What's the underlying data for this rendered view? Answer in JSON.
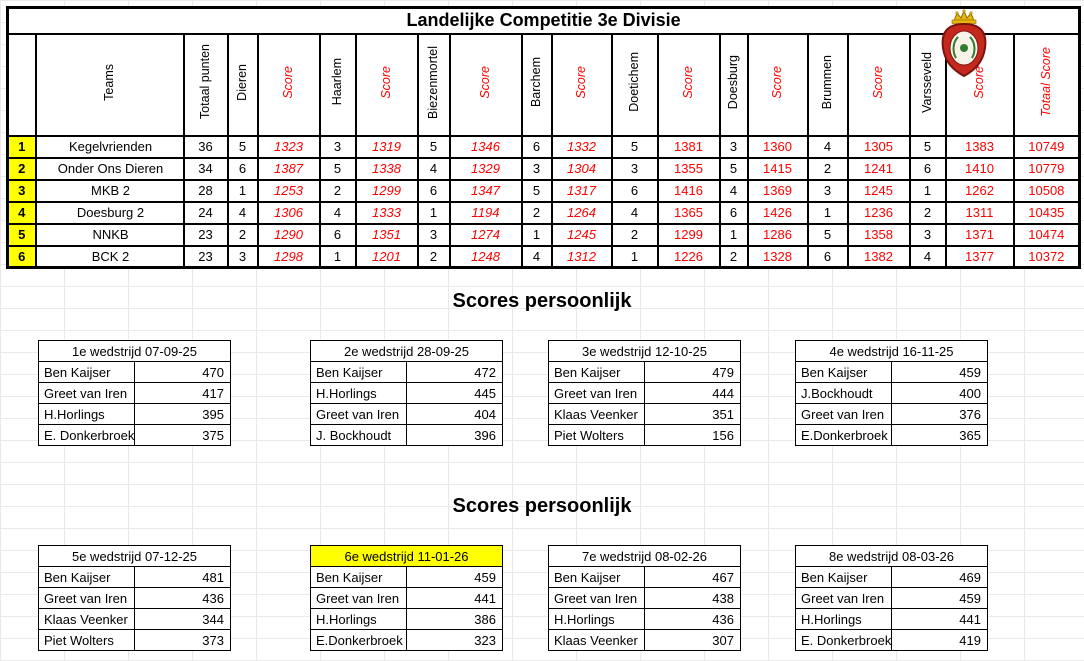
{
  "main_table": {
    "title": "Landelijke Competitie 3e Divisie",
    "columns": [
      {
        "label": "Teams",
        "red": false,
        "style": "team"
      },
      {
        "label": "Totaal punten",
        "red": false,
        "style": "plain"
      },
      {
        "label": "Dieren",
        "red": false,
        "style": "plain"
      },
      {
        "label": "Score",
        "red": true,
        "style": "score-italic"
      },
      {
        "label": "Haarlem",
        "red": false,
        "style": "plain"
      },
      {
        "label": "Score",
        "red": true,
        "style": "score-italic"
      },
      {
        "label": "Biezenmortel",
        "red": false,
        "style": "plain"
      },
      {
        "label": "Score",
        "red": true,
        "style": "score-italic"
      },
      {
        "label": "Barchem",
        "red": false,
        "style": "plain"
      },
      {
        "label": "Score",
        "red": true,
        "style": "score-italic"
      },
      {
        "label": "Doetichem",
        "red": false,
        "style": "plain"
      },
      {
        "label": "Score",
        "red": true,
        "style": "score"
      },
      {
        "label": "Doesburg",
        "red": false,
        "style": "plain"
      },
      {
        "label": "Score",
        "red": true,
        "style": "score"
      },
      {
        "label": "Brummen",
        "red": false,
        "style": "plain"
      },
      {
        "label": "Score",
        "red": true,
        "style": "score"
      },
      {
        "label": "Varsseveld",
        "red": false,
        "style": "plain"
      },
      {
        "label": "Score",
        "red": true,
        "style": "score"
      },
      {
        "label": "Totaal Score",
        "red": true,
        "style": "score"
      }
    ],
    "rows": [
      {
        "rank": "1",
        "cells": [
          "Kegelvrienden",
          "36",
          "5",
          "1323",
          "3",
          "1319",
          "5",
          "1346",
          "6",
          "1332",
          "5",
          "1381",
          "3",
          "1360",
          "4",
          "1305",
          "5",
          "1383",
          "10749"
        ]
      },
      {
        "rank": "2",
        "cells": [
          "Onder Ons Dieren",
          "34",
          "6",
          "1387",
          "5",
          "1338",
          "4",
          "1329",
          "3",
          "1304",
          "3",
          "1355",
          "5",
          "1415",
          "2",
          "1241",
          "6",
          "1410",
          "10779"
        ]
      },
      {
        "rank": "3",
        "cells": [
          "MKB 2",
          "28",
          "1",
          "1253",
          "2",
          "1299",
          "6",
          "1347",
          "5",
          "1317",
          "6",
          "1416",
          "4",
          "1369",
          "3",
          "1245",
          "1",
          "1262",
          "10508"
        ]
      },
      {
        "rank": "4",
        "cells": [
          "Doesburg 2",
          "24",
          "4",
          "1306",
          "4",
          "1333",
          "1",
          "1194",
          "2",
          "1264",
          "4",
          "1365",
          "6",
          "1426",
          "1",
          "1236",
          "2",
          "1311",
          "10435"
        ]
      },
      {
        "rank": "5",
        "cells": [
          "NNKB",
          "23",
          "2",
          "1290",
          "6",
          "1351",
          "3",
          "1274",
          "1",
          "1245",
          "2",
          "1299",
          "1",
          "1286",
          "5",
          "1358",
          "3",
          "1371",
          "10474"
        ]
      },
      {
        "rank": "6",
        "cells": [
          "BCK 2",
          "23",
          "3",
          "1298",
          "1",
          "1201",
          "2",
          "1248",
          "4",
          "1312",
          "1",
          "1226",
          "2",
          "1328",
          "6",
          "1382",
          "4",
          "1377",
          "10372"
        ]
      }
    ]
  },
  "logo": {
    "icon": "club-crest",
    "colors": {
      "red": "#c5281c",
      "gold": "#e8b40e",
      "green": "#2e7d32"
    }
  },
  "sections": [
    {
      "heading": "Scores persoonlijk",
      "tables": [
        {
          "title": "1e wedstrijd 07-09-25",
          "highlight": false,
          "rows": [
            {
              "name": "Ben Kaijser",
              "score": "470"
            },
            {
              "name": "Greet van Iren",
              "score": "417"
            },
            {
              "name": "H.Horlings",
              "score": "395"
            },
            {
              "name": "E. Donkerbroek",
              "score": "375"
            }
          ]
        },
        {
          "title": "2e wedstrijd 28-09-25",
          "highlight": false,
          "rows": [
            {
              "name": "Ben Kaijser",
              "score": "472"
            },
            {
              "name": "H.Horlings",
              "score": "445"
            },
            {
              "name": "Greet van Iren",
              "score": "404"
            },
            {
              "name": "J. Bockhoudt",
              "score": "396"
            }
          ]
        },
        {
          "title": "3e wedstrijd 12-10-25",
          "highlight": false,
          "rows": [
            {
              "name": "Ben Kaijser",
              "score": "479"
            },
            {
              "name": "Greet van Iren",
              "score": "444"
            },
            {
              "name": "Klaas Veenker",
              "score": "351"
            },
            {
              "name": "Piet Wolters",
              "score": "156"
            }
          ]
        },
        {
          "title": "4e wedstrijd 16-11-25",
          "highlight": false,
          "rows": [
            {
              "name": "Ben Kaijser",
              "score": "459"
            },
            {
              "name": "J.Bockhoudt",
              "score": "400"
            },
            {
              "name": "Greet van Iren",
              "score": "376"
            },
            {
              "name": "E.Donkerbroek",
              "score": "365"
            }
          ]
        }
      ]
    },
    {
      "heading": "Scores persoonlijk",
      "tables": [
        {
          "title": "5e wedstrijd 07-12-25",
          "highlight": false,
          "rows": [
            {
              "name": "Ben Kaijser",
              "score": "481"
            },
            {
              "name": "Greet van Iren",
              "score": "436"
            },
            {
              "name": "Klaas Veenker",
              "score": "344"
            },
            {
              "name": "Piet Wolters",
              "score": "373"
            }
          ]
        },
        {
          "title": "6e wedstrijd 11-01-26",
          "highlight": true,
          "rows": [
            {
              "name": "Ben Kaijser",
              "score": "459"
            },
            {
              "name": "Greet van Iren",
              "score": "441"
            },
            {
              "name": "H.Horlings",
              "score": "386"
            },
            {
              "name": "E.Donkerbroek",
              "score": "323"
            }
          ]
        },
        {
          "title": "7e wedstrijd 08-02-26",
          "highlight": false,
          "rows": [
            {
              "name": "Ben Kaijser",
              "score": "467"
            },
            {
              "name": "Greet van Iren",
              "score": "438"
            },
            {
              "name": "H.Horlings",
              "score": "436"
            },
            {
              "name": "Klaas Veenker",
              "score": "307"
            }
          ]
        },
        {
          "title": "8e wedstrijd 08-03-26",
          "highlight": false,
          "rows": [
            {
              "name": "Ben Kaijser",
              "score": "469"
            },
            {
              "name": "Greet van Iren",
              "score": "459"
            },
            {
              "name": "H.Horlings",
              "score": "441"
            },
            {
              "name": "E. Donkerbroek",
              "score": "419"
            }
          ]
        }
      ]
    }
  ],
  "colors": {
    "score_red": "#ff0000",
    "highlight_yellow": "#ffff00",
    "rank_yellow": "#ffff00"
  }
}
